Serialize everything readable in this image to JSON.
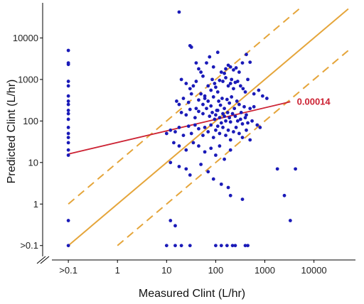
{
  "colors": {
    "points": "#1a1ab8",
    "identity": "#e5a53a",
    "fold_band": "#e5a53a",
    "regression": "#cc2233",
    "axis": "#000000"
  },
  "chart_data": {
    "type": "scatter",
    "title": "",
    "xlabel": "Measured Clint (L/hr)",
    "ylabel": "Predicted Clint (L/hr)",
    "x_scale": "log10",
    "y_scale": "log10",
    "xlim": [
      0.03,
      70000
    ],
    "ylim": [
      0.045,
      70000
    ],
    "x_ticks": [
      {
        "value": 0.1,
        "label": ">0.1"
      },
      {
        "value": 1,
        "label": "1"
      },
      {
        "value": 10,
        "label": "10"
      },
      {
        "value": 100,
        "label": "100"
      },
      {
        "value": 1000,
        "label": "1000"
      },
      {
        "value": 10000,
        "label": "10000"
      }
    ],
    "y_ticks": [
      {
        "value": 0.1,
        "label": ">0.1"
      },
      {
        "value": 1,
        "label": "1"
      },
      {
        "value": 10,
        "label": "10"
      },
      {
        "value": 100,
        "label": "100"
      },
      {
        "value": 1000,
        "label": "1000"
      },
      {
        "value": 10000,
        "label": "10000"
      }
    ],
    "axis_break": true,
    "grid": false,
    "lines": [
      {
        "role": "identity",
        "style": "solid",
        "points": [
          [
            0.1,
            0.1
          ],
          [
            50000,
            50000
          ]
        ]
      },
      {
        "role": "upper-10-fold",
        "style": "dashed",
        "points": [
          [
            0.1,
            1
          ],
          [
            5000,
            50000
          ]
        ]
      },
      {
        "role": "lower-10-fold",
        "style": "dashed",
        "points": [
          [
            1,
            0.1
          ],
          [
            50000,
            5000
          ]
        ]
      },
      {
        "role": "regression",
        "style": "solid",
        "points": [
          [
            0.1,
            16
          ],
          [
            3300,
            290
          ]
        ]
      }
    ],
    "annotations": [
      {
        "text": "0.00014",
        "x": 4500,
        "y": 290,
        "color": "#cc2233"
      }
    ],
    "points": [
      [
        0.1,
        5000
      ],
      [
        0.1,
        2500
      ],
      [
        0.1,
        2300
      ],
      [
        0.1,
        900
      ],
      [
        0.1,
        700
      ],
      [
        0.1,
        400
      ],
      [
        0.1,
        300
      ],
      [
        0.1,
        250
      ],
      [
        0.1,
        180
      ],
      [
        0.1,
        150
      ],
      [
        0.1,
        110
      ],
      [
        0.1,
        70
      ],
      [
        0.1,
        50
      ],
      [
        0.1,
        40
      ],
      [
        0.1,
        30
      ],
      [
        0.1,
        20
      ],
      [
        0.1,
        15
      ],
      [
        0.1,
        0.4
      ],
      [
        0.1,
        0.1
      ],
      [
        18,
        42000
      ],
      [
        30,
        6500
      ],
      [
        32,
        6000
      ],
      [
        40,
        2500
      ],
      [
        45,
        1800
      ],
      [
        50,
        1500
      ],
      [
        55,
        1200
      ],
      [
        65,
        2500
      ],
      [
        75,
        3500
      ],
      [
        90,
        2000
      ],
      [
        110,
        4500
      ],
      [
        130,
        1500
      ],
      [
        150,
        1400
      ],
      [
        160,
        1800
      ],
      [
        180,
        2200
      ],
      [
        200,
        2000
      ],
      [
        230,
        1700
      ],
      [
        260,
        1900
      ],
      [
        300,
        1500
      ],
      [
        350,
        2500
      ],
      [
        420,
        4000
      ],
      [
        500,
        2600
      ],
      [
        20,
        1000
      ],
      [
        25,
        800
      ],
      [
        30,
        600
      ],
      [
        35,
        700
      ],
      [
        40,
        900
      ],
      [
        50,
        450
      ],
      [
        60,
        350
      ],
      [
        70,
        700
      ],
      [
        80,
        550
      ],
      [
        85,
        1000
      ],
      [
        95,
        800
      ],
      [
        100,
        650
      ],
      [
        110,
        500
      ],
      [
        120,
        950
      ],
      [
        140,
        900
      ],
      [
        160,
        1100
      ],
      [
        180,
        700
      ],
      [
        200,
        800
      ],
      [
        210,
        1000
      ],
      [
        230,
        600
      ],
      [
        250,
        850
      ],
      [
        280,
        900
      ],
      [
        320,
        700
      ],
      [
        360,
        600
      ],
      [
        400,
        500
      ],
      [
        450,
        1000
      ],
      [
        600,
        450
      ],
      [
        750,
        550
      ],
      [
        900,
        400
      ],
      [
        1100,
        350
      ],
      [
        16,
        300
      ],
      [
        18,
        250
      ],
      [
        22,
        350
      ],
      [
        28,
        280
      ],
      [
        32,
        450
      ],
      [
        40,
        200
      ],
      [
        45,
        320
      ],
      [
        55,
        250
      ],
      [
        60,
        400
      ],
      [
        70,
        300
      ],
      [
        80,
        230
      ],
      [
        90,
        380
      ],
      [
        105,
        180
      ],
      [
        115,
        300
      ],
      [
        125,
        240
      ],
      [
        135,
        350
      ],
      [
        150,
        200
      ],
      [
        170,
        330
      ],
      [
        190,
        270
      ],
      [
        210,
        380
      ],
      [
        240,
        200
      ],
      [
        270,
        300
      ],
      [
        300,
        250
      ],
      [
        330,
        160
      ],
      [
        380,
        220
      ],
      [
        420,
        140
      ],
      [
        500,
        200
      ],
      [
        600,
        220
      ],
      [
        20,
        160
      ],
      [
        25,
        140
      ],
      [
        30,
        190
      ],
      [
        38,
        120
      ],
      [
        45,
        170
      ],
      [
        55,
        150
      ],
      [
        65,
        200
      ],
      [
        75,
        130
      ],
      [
        85,
        160
      ],
      [
        95,
        110
      ],
      [
        100,
        140
      ],
      [
        110,
        180
      ],
      [
        120,
        120
      ],
      [
        130,
        90
      ],
      [
        140,
        150
      ],
      [
        150,
        130
      ],
      [
        160,
        100
      ],
      [
        175,
        160
      ],
      [
        190,
        120
      ],
      [
        200,
        95
      ],
      [
        220,
        150
      ],
      [
        250,
        130
      ],
      [
        280,
        100
      ],
      [
        320,
        110
      ],
      [
        350,
        85
      ],
      [
        400,
        120
      ],
      [
        450,
        90
      ],
      [
        550,
        100
      ],
      [
        700,
        80
      ],
      [
        800,
        70
      ],
      [
        12,
        60
      ],
      [
        15,
        55
      ],
      [
        18,
        70
      ],
      [
        22,
        45
      ],
      [
        28,
        75
      ],
      [
        32,
        50
      ],
      [
        38,
        80
      ],
      [
        45,
        65
      ],
      [
        55,
        45
      ],
      [
        60,
        70
      ],
      [
        70,
        55
      ],
      [
        80,
        80
      ],
      [
        90,
        40
      ],
      [
        100,
        60
      ],
      [
        110,
        75
      ],
      [
        120,
        50
      ],
      [
        140,
        70
      ],
      [
        160,
        45
      ],
      [
        180,
        60
      ],
      [
        200,
        35
      ],
      [
        230,
        55
      ],
      [
        260,
        70
      ],
      [
        300,
        50
      ],
      [
        350,
        40
      ],
      [
        420,
        60
      ],
      [
        500,
        35
      ],
      [
        10,
        50
      ],
      [
        14,
        30
      ],
      [
        18,
        25
      ],
      [
        25,
        20
      ],
      [
        35,
        30
      ],
      [
        45,
        25
      ],
      [
        60,
        18
      ],
      [
        80,
        22
      ],
      [
        100,
        15
      ],
      [
        120,
        25
      ],
      [
        150,
        12
      ],
      [
        200,
        20
      ],
      [
        12,
        10
      ],
      [
        18,
        8
      ],
      [
        25,
        7
      ],
      [
        30,
        5
      ],
      [
        50,
        9
      ],
      [
        70,
        6
      ],
      [
        90,
        4
      ],
      [
        130,
        3
      ],
      [
        180,
        2.5
      ],
      [
        200,
        1.6
      ],
      [
        350,
        1.3
      ],
      [
        1800,
        7
      ],
      [
        2500,
        1.6
      ],
      [
        4200,
        7
      ],
      [
        3300,
        0.4
      ],
      [
        12,
        0.4
      ],
      [
        15,
        0.3
      ],
      [
        10,
        0.1
      ],
      [
        15,
        0.1
      ],
      [
        20,
        0.1
      ],
      [
        30,
        0.1
      ],
      [
        100,
        0.1
      ],
      [
        130,
        0.1
      ],
      [
        170,
        0.1
      ],
      [
        220,
        0.1
      ],
      [
        250,
        0.1
      ],
      [
        400,
        0.1
      ],
      [
        450,
        0.1
      ]
    ]
  }
}
